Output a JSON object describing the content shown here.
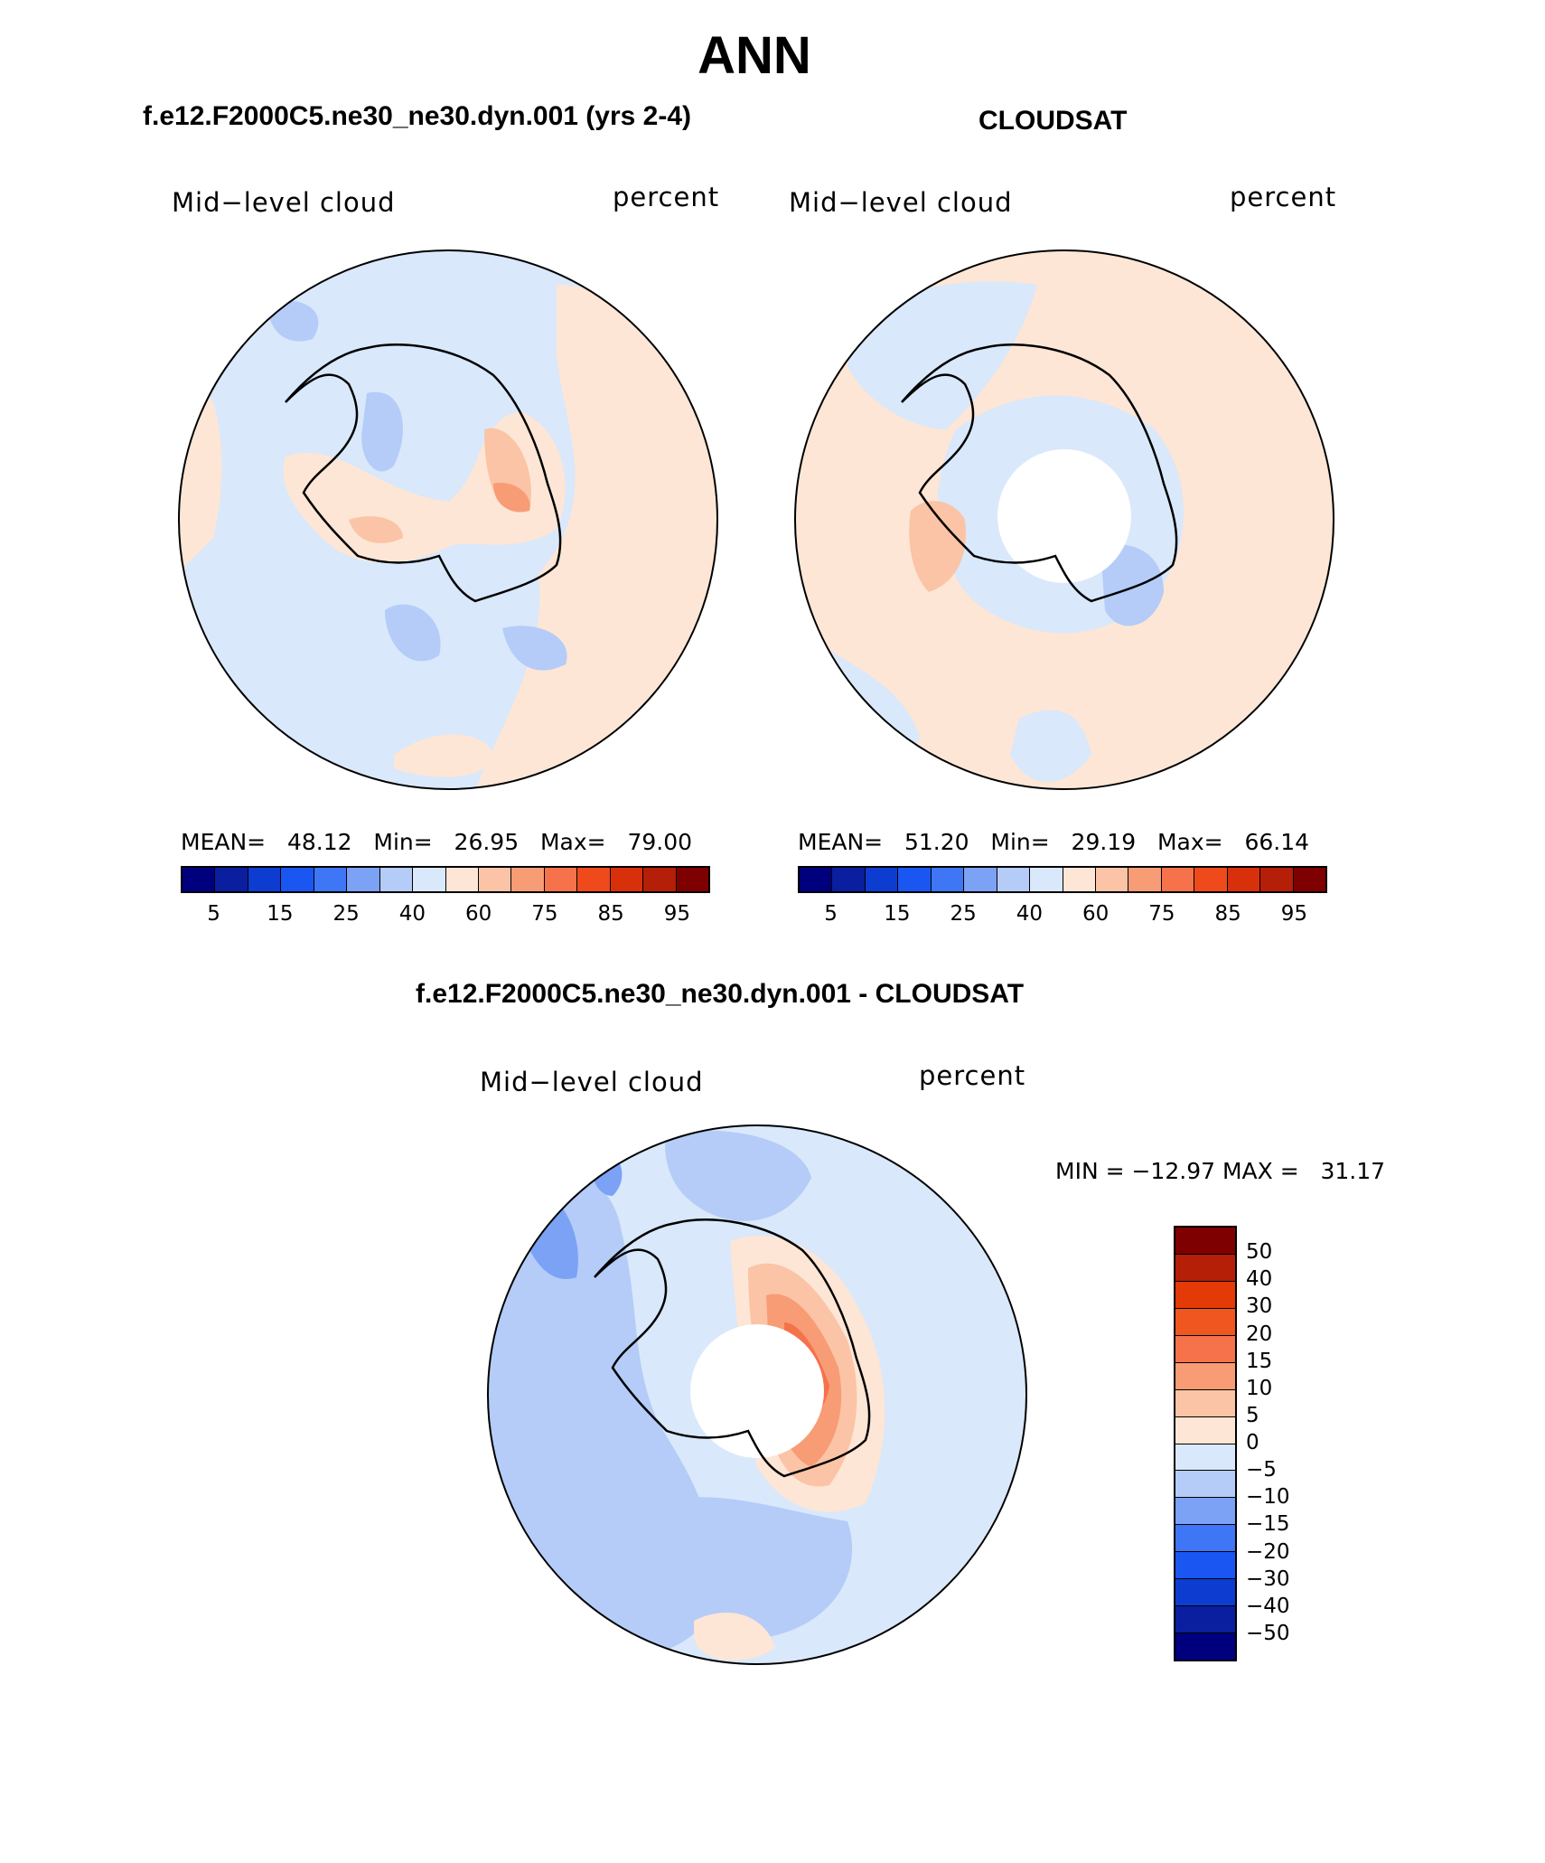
{
  "title": "ANN",
  "panels": {
    "model": {
      "title": "f.e12.F2000C5.ne30_ne30.dyn.001 (yrs 2-4)",
      "left_label": "Mid−level cloud",
      "right_label": "percent",
      "stats": {
        "mean_label": "MEAN=",
        "mean": "48.12",
        "min_label": "Min=",
        "min": "26.95",
        "max_label": "Max=",
        "max": "79.00"
      }
    },
    "obs": {
      "title": "CLOUDSAT",
      "left_label": "Mid−level cloud",
      "right_label": "percent",
      "stats": {
        "mean_label": "MEAN=",
        "mean": "51.20",
        "min_label": "Min=",
        "min": "29.19",
        "max_label": "Max=",
        "max": "66.14"
      }
    },
    "diff": {
      "title": "f.e12.F2000C5.ne30_ne30.dyn.001 - CLOUDSAT",
      "left_label": "Mid−level cloud",
      "right_label": "percent",
      "stats": "MIN = −12.97 MAX =   31.17"
    }
  },
  "colorbar_abs": {
    "colors": [
      "#00007f",
      "#0a1ea0",
      "#0d3dd0",
      "#1a56f2",
      "#3f76f5",
      "#7ba2f5",
      "#b4ccf7",
      "#d9e8fb",
      "#fde6d6",
      "#fbc4a6",
      "#f89c76",
      "#f5724a",
      "#ee4a1c",
      "#d8300b",
      "#b51e07",
      "#7f0000"
    ],
    "labels": [
      "5",
      "15",
      "25",
      "40",
      "60",
      "75",
      "85",
      "95"
    ]
  },
  "colorbar_diff": {
    "colors": [
      "#7f0000",
      "#b51e07",
      "#e33a08",
      "#f0561f",
      "#f5724a",
      "#f89c76",
      "#fbc4a6",
      "#fde6d6",
      "#d9e8fb",
      "#b4ccf7",
      "#7ba2f5",
      "#3f76f5",
      "#1a56f2",
      "#0d3dd0",
      "#0a1ea0",
      "#00007f"
    ],
    "labels": [
      "50",
      "40",
      "30",
      "20",
      "15",
      "10",
      "5",
      "0",
      "−5",
      "−10",
      "−15",
      "−20",
      "−30",
      "−40",
      "−50"
    ]
  }
}
